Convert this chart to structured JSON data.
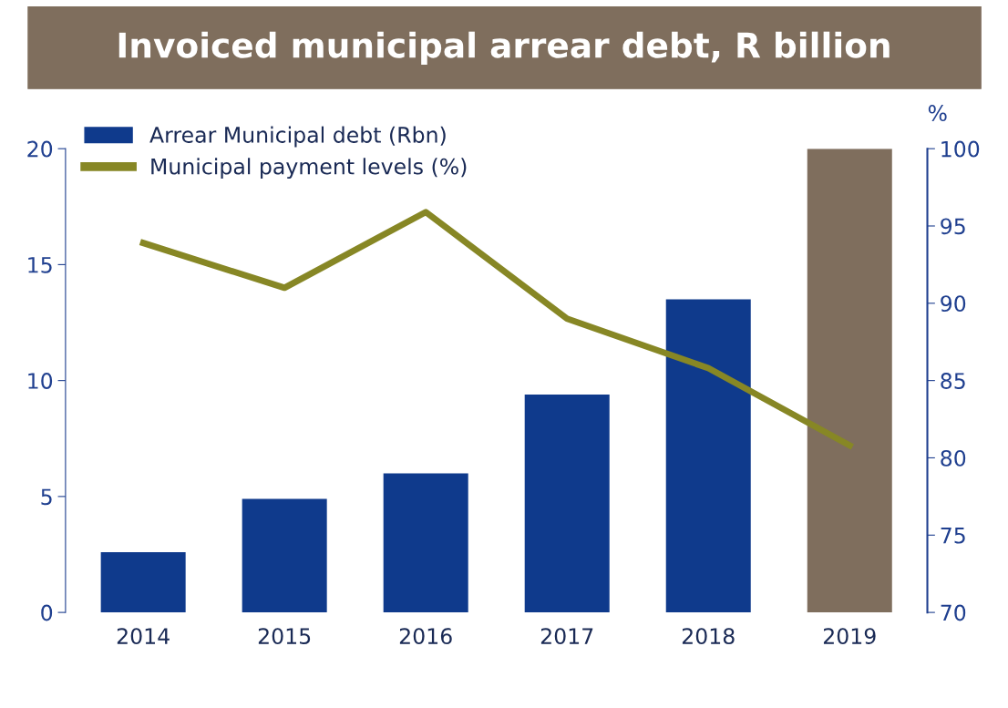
{
  "chart_data": {
    "type": "bar",
    "title": "Invoiced municipal arrear debt, R billion",
    "categories": [
      "2014",
      "2015",
      "2016",
      "2017",
      "2018",
      "2019"
    ],
    "series": [
      {
        "name": "Arrear Municipal debt (Rbn)",
        "color": "#0f3a8c",
        "colors": [
          "#0f3a8c",
          "#0f3a8c",
          "#0f3a8c",
          "#0f3a8c",
          "#0f3a8c",
          "#7f6e5d"
        ],
        "values": [
          2.6,
          4.9,
          6.0,
          9.4,
          13.5,
          20.0
        ]
      },
      {
        "name": "Municipal payment levels (%)",
        "type": "line",
        "axis": "y2",
        "color": "#878725",
        "values": [
          93.9,
          91.0,
          95.9,
          89.0,
          85.8,
          80.8
        ]
      }
    ],
    "ylim": [
      0,
      20
    ],
    "yticks": [
      0,
      5,
      10,
      15,
      20
    ],
    "y2lim": [
      70,
      100
    ],
    "y2ticks": [
      70,
      75,
      80,
      85,
      90,
      95,
      100
    ],
    "y2label": "%",
    "legend": "top left",
    "grid": false,
    "marker": "none",
    "line_style": "solid"
  }
}
